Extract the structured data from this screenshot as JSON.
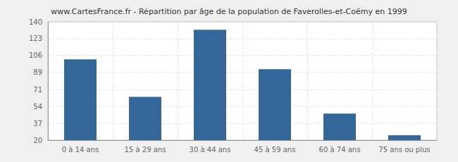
{
  "chart_data": {
    "type": "bar",
    "title": "www.CartesFrance.fr - Répartition par âge de la population de Faverolles-et-Coëmy en 1999",
    "categories": [
      "0 à 14 ans",
      "15 à 29 ans",
      "30 à 44 ans",
      "45 à 59 ans",
      "60 à 74 ans",
      "75 ans ou plus"
    ],
    "values": [
      102,
      64,
      132,
      92,
      47,
      25
    ],
    "color": "#336699",
    "ylim": [
      20,
      140
    ],
    "yticks": [
      20,
      37,
      54,
      71,
      89,
      106,
      123,
      140
    ],
    "grid": true
  }
}
